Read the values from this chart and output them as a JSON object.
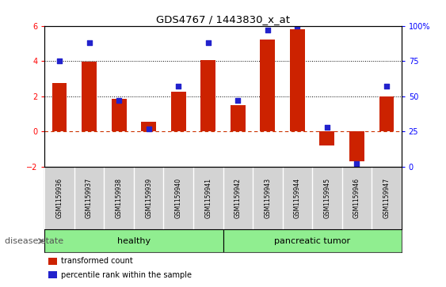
{
  "title": "GDS4767 / 1443830_x_at",
  "samples": [
    "GSM1159936",
    "GSM1159937",
    "GSM1159938",
    "GSM1159939",
    "GSM1159940",
    "GSM1159941",
    "GSM1159942",
    "GSM1159943",
    "GSM1159944",
    "GSM1159945",
    "GSM1159946",
    "GSM1159947"
  ],
  "transformed_count": [
    2.75,
    3.95,
    1.85,
    0.55,
    2.25,
    4.05,
    1.5,
    5.2,
    5.8,
    -0.8,
    -1.7,
    2.0
  ],
  "percentile_rank": [
    75,
    88,
    47,
    27,
    57,
    88,
    47,
    97,
    100,
    28,
    2,
    57
  ],
  "groups": {
    "healthy": [
      0,
      1,
      2,
      3,
      4,
      5
    ],
    "pancreatic tumor": [
      6,
      7,
      8,
      9,
      10,
      11
    ]
  },
  "bar_color_red": "#cc2200",
  "bar_color_blue": "#2222cc",
  "ylim_left": [
    -2,
    6
  ],
  "ylim_right": [
    0,
    100
  ],
  "yticks_left": [
    -2,
    0,
    2,
    4,
    6
  ],
  "yticks_right": [
    0,
    25,
    50,
    75,
    100
  ],
  "ytick_labels_right": [
    "0",
    "25",
    "50",
    "75",
    "100%"
  ],
  "group_label_color": "#aaaaaa",
  "disease_state_label": "disease state",
  "legend_labels": [
    "transformed count",
    "percentile rank within the sample"
  ],
  "label_bg": "#d3d3d3",
  "group_bg": "#90EE90",
  "plot_bg": "#ffffff"
}
